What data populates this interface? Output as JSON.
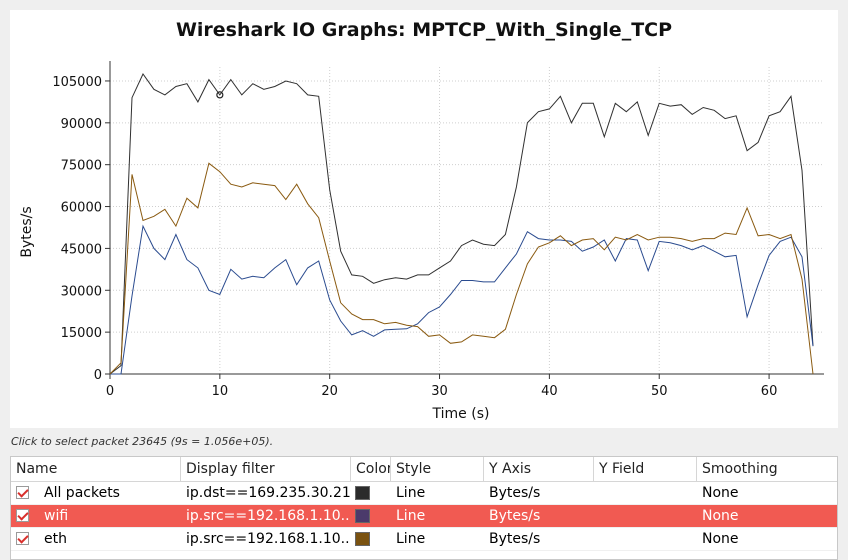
{
  "chart_data": {
    "type": "line",
    "title": "Wireshark IO Graphs: MPTCP_With_Single_TCP",
    "xlabel": "Time (s)",
    "ylabel": "Bytes/s",
    "xlim": [
      0,
      65
    ],
    "ylim": [
      0,
      110000
    ],
    "xticks": [
      0,
      10,
      20,
      30,
      40,
      50,
      60
    ],
    "yticks": [
      0,
      15000,
      30000,
      45000,
      60000,
      75000,
      90000,
      105000
    ],
    "grid": true,
    "x": [
      0,
      1,
      2,
      3,
      4,
      5,
      6,
      7,
      8,
      9,
      10,
      11,
      12,
      13,
      14,
      15,
      16,
      17,
      18,
      19,
      20,
      21,
      22,
      23,
      24,
      25,
      26,
      27,
      28,
      29,
      30,
      31,
      32,
      33,
      34,
      35,
      36,
      37,
      38,
      39,
      40,
      41,
      42,
      43,
      44,
      45,
      46,
      47,
      48,
      49,
      50,
      51,
      52,
      53,
      54,
      55,
      56,
      57,
      58,
      59,
      60,
      61,
      62,
      63,
      64
    ],
    "series": [
      {
        "name": "All packets",
        "color": "#303030",
        "values": [
          0,
          3000,
          99000,
          107500,
          102000,
          100000,
          103000,
          104000,
          97500,
          105500,
          100000,
          105500,
          100000,
          104000,
          102000,
          103000,
          105000,
          104000,
          100000,
          99500,
          66000,
          44000,
          35500,
          35000,
          32500,
          33800,
          34500,
          34000,
          35500,
          35500,
          38000,
          40500,
          46000,
          48000,
          46500,
          46000,
          50000,
          67000,
          90000,
          94000,
          95000,
          99500,
          90000,
          97000,
          97000,
          85000,
          97000,
          94000,
          97500,
          85500,
          97000,
          96000,
          96500,
          93000,
          95500,
          94500,
          91500,
          92500,
          80000,
          83000,
          92500,
          94000,
          99500,
          73000,
          10000
        ]
      },
      {
        "name": "wifi",
        "color": "#2a4b8f",
        "values": [
          0,
          0,
          28000,
          53000,
          45000,
          41000,
          50000,
          41000,
          38000,
          30000,
          28500,
          37500,
          34000,
          35000,
          34500,
          38000,
          41000,
          32000,
          38000,
          40500,
          26500,
          19000,
          14000,
          15500,
          13500,
          15800,
          16000,
          16200,
          18000,
          22000,
          24000,
          28500,
          33500,
          33500,
          33000,
          33000,
          38000,
          43000,
          51000,
          48500,
          48000,
          48000,
          47500,
          44000,
          45500,
          48000,
          40500,
          48500,
          48000,
          37000,
          47500,
          47000,
          46000,
          44500,
          46000,
          44000,
          42000,
          42500,
          20500,
          32000,
          42500,
          47500,
          49000,
          42000,
          10000
        ]
      },
      {
        "name": "eth",
        "color": "#8a5a10",
        "values": [
          0,
          4000,
          71500,
          55000,
          56500,
          59000,
          53000,
          63000,
          59500,
          75500,
          72500,
          68000,
          67000,
          68500,
          68000,
          67500,
          62500,
          68000,
          61000,
          56000,
          40500,
          25500,
          21500,
          19500,
          19500,
          18000,
          18500,
          17500,
          17000,
          13500,
          14000,
          11000,
          11500,
          14000,
          13500,
          13000,
          16000,
          28500,
          39500,
          45500,
          47000,
          49500,
          46000,
          48000,
          48500,
          44500,
          49000,
          48000,
          50000,
          48000,
          49000,
          49000,
          48500,
          47500,
          48500,
          48500,
          50500,
          50000,
          59500,
          49500,
          50000,
          48500,
          50000,
          34000,
          0
        ]
      }
    ],
    "marker": {
      "x": 10,
      "y": 100000
    }
  },
  "status_hint": "Click to select packet 23645 (9s = 1.056e+05).",
  "table": {
    "columns": [
      "Name",
      "Display filter",
      "Color",
      "Style",
      "Y Axis",
      "Y Field",
      "Smoothing"
    ],
    "rows": [
      {
        "name": "All packets",
        "filter": "ip.dst==169.235.30.21",
        "color": "#2b2b2b",
        "style": "Line",
        "yaxis": "Bytes/s",
        "yfield": "",
        "smoothing": "None",
        "selected": false
      },
      {
        "name": "wifi",
        "filter": "ip.src==192.168.1.10...",
        "color": "#4b3a6b",
        "style": "Line",
        "yaxis": "Bytes/s",
        "yfield": "",
        "smoothing": "None",
        "selected": true
      },
      {
        "name": "eth",
        "filter": "ip.src==192.168.1.10...",
        "color": "#7a5210",
        "style": "Line",
        "yaxis": "Bytes/s",
        "yfield": "",
        "smoothing": "None",
        "selected": false
      }
    ]
  }
}
